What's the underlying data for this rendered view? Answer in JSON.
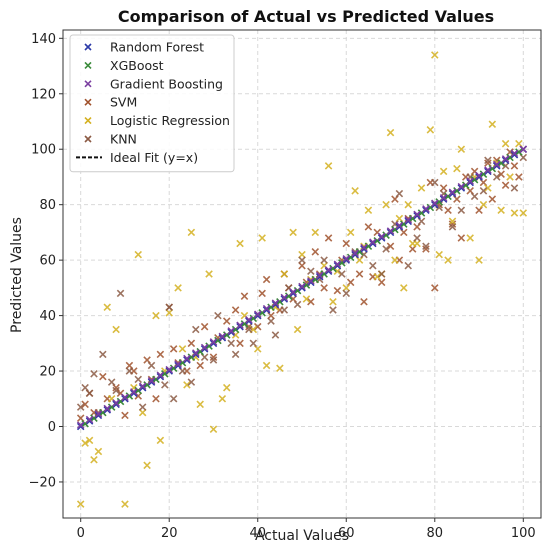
{
  "chart_data": {
    "type": "scatter",
    "title": "Comparison of Actual vs Predicted Values",
    "xlabel": "Actual Values",
    "ylabel": "Predicted Values",
    "xlim": [
      -4,
      104
    ],
    "ylim": [
      -33,
      143
    ],
    "xticks": [
      0,
      20,
      40,
      60,
      80,
      100
    ],
    "yticks": [
      -20,
      0,
      20,
      40,
      60,
      80,
      100,
      120,
      140
    ],
    "grid": true,
    "legend_position": "top-left",
    "ideal_fit": {
      "label": "Ideal Fit (y=x)",
      "color": "#111111",
      "style": "dashed",
      "x": [
        0,
        100
      ],
      "y": [
        0,
        100
      ]
    },
    "series": [
      {
        "name": "Random Forest",
        "color": "#2c3aa8",
        "marker": "x",
        "x": [
          0,
          2,
          4,
          6,
          8,
          10,
          12,
          14,
          16,
          18,
          20,
          22,
          24,
          26,
          28,
          30,
          32,
          34,
          36,
          38,
          40,
          42,
          44,
          46,
          48,
          50,
          52,
          54,
          56,
          58,
          60,
          62,
          64,
          66,
          68,
          70,
          72,
          74,
          76,
          78,
          80,
          82,
          84,
          86,
          88,
          90,
          92,
          94,
          96,
          98,
          100
        ],
        "y": [
          0,
          2,
          4,
          6,
          8,
          10,
          12,
          14,
          16,
          18,
          20,
          22,
          24,
          26,
          28,
          30,
          32,
          34,
          36,
          38,
          40,
          42,
          44,
          46,
          48,
          50,
          52,
          54,
          56,
          58,
          60,
          62,
          64,
          66,
          68,
          70,
          72,
          74,
          76,
          78,
          80,
          82,
          84,
          86,
          88,
          90,
          92,
          94,
          96,
          98,
          100
        ]
      },
      {
        "name": "XGBoost",
        "color": "#3a8a3a",
        "marker": "x",
        "x": [
          1,
          3,
          5,
          7,
          9,
          11,
          13,
          15,
          17,
          19,
          21,
          23,
          25,
          27,
          29,
          31,
          33,
          35,
          37,
          39,
          41,
          43,
          45,
          47,
          49,
          51,
          53,
          55,
          57,
          59,
          61,
          63,
          65,
          67,
          69,
          71,
          73,
          75,
          77,
          79,
          81,
          83,
          85,
          87,
          89,
          91,
          93,
          95,
          97,
          99
        ],
        "y": [
          1,
          3,
          5,
          7,
          9,
          11,
          13,
          15,
          17,
          19,
          21,
          23,
          25,
          27,
          29,
          31,
          33,
          35,
          37,
          39,
          41,
          43,
          45,
          47,
          49,
          51,
          53,
          55,
          57,
          59,
          61,
          63,
          65,
          67,
          69,
          71,
          73,
          75,
          77,
          79,
          81,
          83,
          85,
          87,
          89,
          91,
          93,
          95,
          97,
          99
        ]
      },
      {
        "name": "Gradient Boosting",
        "color": "#7b3fa0",
        "marker": "x",
        "x": [
          0,
          2,
          4,
          6,
          8,
          10,
          12,
          14,
          16,
          18,
          20,
          22,
          24,
          26,
          28,
          30,
          32,
          34,
          36,
          38,
          40,
          42,
          44,
          46,
          48,
          50,
          52,
          54,
          56,
          58,
          60,
          62,
          64,
          66,
          68,
          70,
          72,
          74,
          76,
          78,
          80,
          82,
          84,
          86,
          88,
          90,
          92,
          94,
          96,
          98,
          100
        ],
        "y": [
          0.5,
          2.5,
          4.5,
          6.5,
          8.5,
          10.5,
          12.5,
          14.5,
          16.5,
          18.5,
          20.5,
          22.5,
          24.5,
          26.5,
          28.5,
          30.5,
          32.5,
          34.5,
          36.5,
          38.5,
          40.5,
          42.5,
          44.5,
          46.5,
          48.5,
          50.5,
          52.5,
          54.5,
          56.5,
          58.5,
          60.5,
          62.5,
          64.5,
          66.5,
          68.5,
          70.5,
          72.5,
          74.5,
          76.5,
          78.5,
          80.5,
          82.5,
          84.5,
          86.5,
          88.5,
          90.5,
          92.5,
          94.5,
          96.5,
          98.5,
          100
        ]
      },
      {
        "name": "SVM",
        "color": "#a0522d",
        "marker": "x",
        "x": [
          0,
          1,
          2,
          3,
          5,
          6,
          8,
          9,
          10,
          11,
          12,
          13,
          15,
          16,
          17,
          18,
          20,
          21,
          22,
          24,
          25,
          27,
          28,
          30,
          31,
          33,
          35,
          36,
          37,
          38,
          40,
          41,
          42,
          43,
          45,
          46,
          47,
          48,
          50,
          51,
          52,
          53,
          54,
          55,
          56,
          58,
          59,
          60,
          61,
          62,
          63,
          64,
          65,
          66,
          67,
          68,
          70,
          71,
          72,
          73,
          74,
          75,
          76,
          78,
          79,
          80,
          81,
          82,
          83,
          84,
          85,
          86,
          87,
          88,
          89,
          90,
          91,
          92,
          93,
          94,
          95,
          96,
          97,
          98,
          99,
          100
        ],
        "y": [
          3,
          8,
          12,
          5,
          18,
          10,
          14,
          12,
          4,
          22,
          20,
          11,
          24,
          17,
          10,
          26,
          43,
          28,
          23,
          20,
          30,
          22,
          36,
          25,
          32,
          38,
          42,
          30,
          47,
          36,
          36,
          48,
          53,
          40,
          42,
          55,
          50,
          46,
          58,
          52,
          45,
          63,
          55,
          50,
          68,
          49,
          60,
          66,
          52,
          62,
          55,
          45,
          72,
          54,
          70,
          52,
          65,
          82,
          60,
          70,
          75,
          64,
          72,
          64,
          88,
          50,
          80,
          86,
          78,
          73,
          82,
          68,
          90,
          85,
          92,
          78,
          88,
          95,
          82,
          96,
          91,
          87,
          99,
          94,
          90,
          100
        ]
      },
      {
        "name": "Logistic Regression",
        "color": "#d4b020",
        "marker": "x",
        "x": [
          0,
          1,
          2,
          3,
          4,
          6,
          7,
          8,
          10,
          12,
          13,
          14,
          15,
          17,
          18,
          19,
          20,
          22,
          23,
          24,
          25,
          26,
          27,
          29,
          30,
          32,
          33,
          35,
          36,
          37,
          39,
          40,
          41,
          42,
          44,
          45,
          46,
          48,
          49,
          50,
          51,
          52,
          53,
          55,
          56,
          57,
          58,
          60,
          61,
          62,
          63,
          64,
          65,
          67,
          68,
          69,
          70,
          71,
          72,
          73,
          74,
          75,
          76,
          77,
          79,
          80,
          81,
          82,
          83,
          84,
          85,
          86,
          87,
          88,
          89,
          90,
          91,
          92,
          93,
          94,
          95,
          96,
          97,
          98,
          99,
          100
        ],
        "y": [
          -28,
          -6,
          -5,
          -12,
          -9,
          43,
          10,
          35,
          -28,
          14,
          62,
          5,
          -14,
          40,
          -5,
          20,
          41,
          50,
          28,
          15,
          70,
          25,
          8,
          55,
          -1,
          10,
          14,
          33,
          66,
          40,
          35,
          28,
          68,
          22,
          43,
          21,
          55,
          70,
          35,
          62,
          46,
          53,
          70,
          58,
          94,
          45,
          56,
          50,
          70,
          85,
          60,
          65,
          78,
          54,
          55,
          80,
          106,
          60,
          75,
          50,
          80,
          66,
          66,
          86,
          107,
          134,
          62,
          92,
          60,
          74,
          93,
          100,
          87,
          68,
          90,
          60,
          80,
          86,
          109,
          95,
          78,
          102,
          90,
          77,
          102,
          77
        ]
      },
      {
        "name": "KNN",
        "color": "#8b5a44",
        "marker": "x",
        "x": [
          0,
          1,
          2,
          3,
          4,
          5,
          7,
          8,
          9,
          11,
          13,
          14,
          16,
          19,
          20,
          21,
          23,
          25,
          26,
          28,
          30,
          31,
          34,
          35,
          38,
          39,
          40,
          43,
          44,
          46,
          47,
          49,
          50,
          52,
          54,
          55,
          57,
          59,
          60,
          62,
          64,
          66,
          68,
          69,
          71,
          72,
          74,
          76,
          77,
          78,
          80,
          81,
          82,
          84,
          86,
          88,
          89,
          91,
          92,
          94,
          96,
          98,
          100
        ],
        "y": [
          7,
          14,
          12,
          19,
          5,
          26,
          16,
          13,
          48,
          20,
          17,
          7,
          22,
          15,
          43,
          10,
          20,
          16,
          35,
          25,
          24,
          40,
          30,
          26,
          35,
          30,
          40,
          38,
          33,
          42,
          50,
          44,
          60,
          56,
          53,
          60,
          42,
          55,
          48,
          63,
          62,
          58,
          55,
          64,
          73,
          84,
          58,
          68,
          74,
          65,
          88,
          79,
          84,
          72,
          78,
          90,
          83,
          85,
          96,
          90,
          94,
          86,
          97
        ]
      }
    ]
  }
}
